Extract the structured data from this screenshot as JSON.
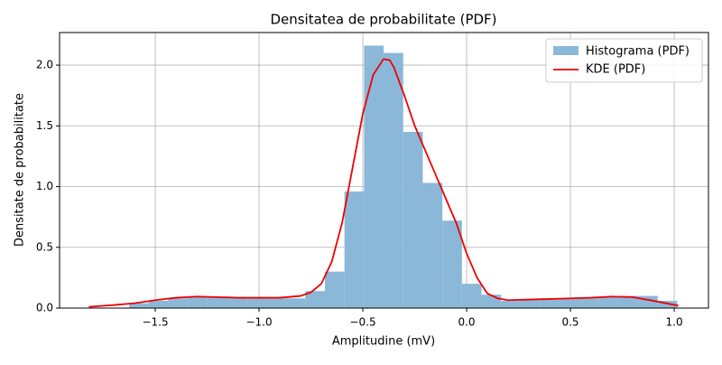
{
  "chart_data": {
    "type": "hist_kde",
    "title": "Densitatea de probabilitate (PDF)",
    "x_label": "Amplitudine (mV)",
    "y_label": "Densitate de probabilitate",
    "xlim": [
      -1.961,
      1.165
    ],
    "ylim": [
      0,
      2.268
    ],
    "xticks": [
      {
        "value": -1.5,
        "label": "−1.5"
      },
      {
        "value": -1.0,
        "label": "−1.0"
      },
      {
        "value": -0.5,
        "label": "−0.5"
      },
      {
        "value": 0,
        "label": "0.0"
      },
      {
        "value": 0.5,
        "label": "0.5"
      },
      {
        "value": 1.0,
        "label": "1.0"
      }
    ],
    "yticks": [
      {
        "value": 0,
        "label": "0.0"
      },
      {
        "value": 0.5,
        "label": "0.5"
      },
      {
        "value": 1.0,
        "label": "1.0"
      },
      {
        "value": 1.5,
        "label": "1.5"
      },
      {
        "value": 2.0,
        "label": "2.0"
      }
    ],
    "grid": true,
    "legend": "upper right",
    "histogram": {
      "name": "Histograma (PDF)",
      "color": "#8bb8d9",
      "bins": [
        -1.626,
        -1.5317,
        -1.4374,
        -1.343,
        -1.2487,
        -1.1544,
        -1.0601,
        -0.9658,
        -0.8714,
        -0.7771,
        -0.6828,
        -0.5885,
        -0.4942,
        -0.3998,
        -0.3055,
        -0.2112,
        -0.1169,
        -0.0226,
        0.0718,
        0.1661,
        0.2604,
        0.3547,
        0.449,
        0.5434,
        0.6377,
        0.732,
        0.8263,
        0.9207,
        1.015
      ],
      "counts": [
        0.04,
        0.06,
        0.08,
        0.09,
        0.09,
        0.09,
        0.08,
        0.08,
        0.08,
        0.14,
        0.3,
        0.96,
        2.16,
        2.1,
        1.45,
        1.03,
        0.72,
        0.2,
        0.11,
        0.06,
        0.07,
        0.07,
        0.08,
        0.08,
        0.09,
        0.1,
        0.1,
        0.06
      ]
    },
    "kde": {
      "name": "KDE (PDF)",
      "color": "#ee0000",
      "x": [
        -1.82,
        -1.7,
        -1.6,
        -1.5,
        -1.4,
        -1.3,
        -1.2,
        -1.1,
        -1.0,
        -0.9,
        -0.8,
        -0.75,
        -0.7,
        -0.65,
        -0.6,
        -0.55,
        -0.5,
        -0.45,
        -0.4,
        -0.37,
        -0.35,
        -0.3,
        -0.25,
        -0.2,
        -0.15,
        -0.1,
        -0.05,
        0,
        0.05,
        0.1,
        0.15,
        0.2,
        0.3,
        0.4,
        0.5,
        0.6,
        0.7,
        0.8,
        0.9,
        1.02
      ],
      "values": [
        0.01,
        0.025,
        0.04,
        0.065,
        0.085,
        0.095,
        0.09,
        0.085,
        0.085,
        0.085,
        0.1,
        0.13,
        0.2,
        0.38,
        0.7,
        1.15,
        1.6,
        1.92,
        2.05,
        2.04,
        1.98,
        1.75,
        1.5,
        1.3,
        1.1,
        0.9,
        0.7,
        0.45,
        0.25,
        0.12,
        0.08,
        0.065,
        0.07,
        0.075,
        0.08,
        0.085,
        0.095,
        0.09,
        0.06,
        0.02
      ]
    }
  }
}
